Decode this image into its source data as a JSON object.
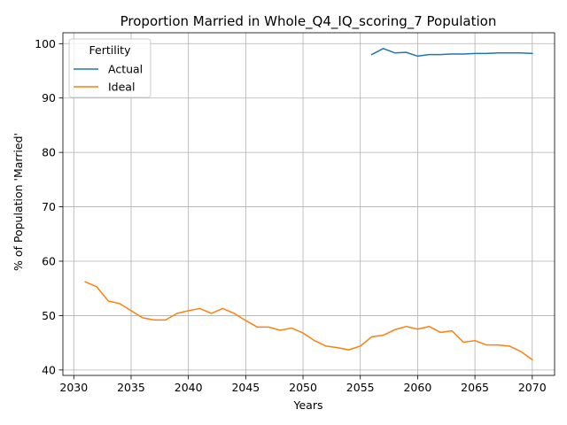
{
  "chart_data": {
    "type": "line",
    "title": "Proportion Married in Whole_Q4_IQ_scoring_7 Population",
    "xlabel": "Years",
    "ylabel": "% of Population 'Married'",
    "xlim": [
      2029.05,
      2071.95
    ],
    "ylim": [
      39.0,
      102.0
    ],
    "xticks": [
      2030,
      2035,
      2040,
      2045,
      2050,
      2055,
      2060,
      2065,
      2070
    ],
    "yticks": [
      40,
      50,
      60,
      70,
      80,
      90,
      100
    ],
    "grid": true,
    "legend": {
      "title": "Fertility",
      "placement": "top-left"
    },
    "series": [
      {
        "name": "Actual",
        "color": "#1f77b4",
        "x": [
          2056,
          2057,
          2058,
          2059,
          2060,
          2061,
          2062,
          2063,
          2064,
          2065,
          2066,
          2067,
          2068,
          2069,
          2070
        ],
        "values": [
          98.0,
          99.1,
          98.3,
          98.4,
          97.7,
          98.0,
          98.0,
          98.1,
          98.1,
          98.2,
          98.2,
          98.3,
          98.3,
          98.3,
          98.2
        ]
      },
      {
        "name": "Ideal",
        "color": "#ff7f0e",
        "x": [
          2031,
          2032,
          2033,
          2034,
          2035,
          2036,
          2037,
          2038,
          2039,
          2040,
          2041,
          2042,
          2043,
          2044,
          2045,
          2046,
          2047,
          2048,
          2049,
          2050,
          2051,
          2052,
          2053,
          2054,
          2055,
          2056,
          2057,
          2058,
          2059,
          2060,
          2061,
          2062,
          2063,
          2064,
          2065,
          2066,
          2067,
          2068,
          2069,
          2070
        ],
        "values": [
          56.2,
          55.3,
          52.7,
          52.2,
          50.9,
          49.6,
          49.2,
          49.2,
          50.4,
          50.9,
          51.3,
          50.4,
          51.3,
          50.4,
          49.1,
          47.9,
          47.9,
          47.3,
          47.7,
          46.8,
          45.4,
          44.4,
          44.1,
          43.7,
          44.4,
          46.1,
          46.4,
          47.4,
          48.0,
          47.5,
          48.0,
          46.9,
          47.2,
          45.1,
          45.4,
          44.6,
          44.6,
          44.4,
          43.4,
          41.9
        ]
      }
    ]
  }
}
